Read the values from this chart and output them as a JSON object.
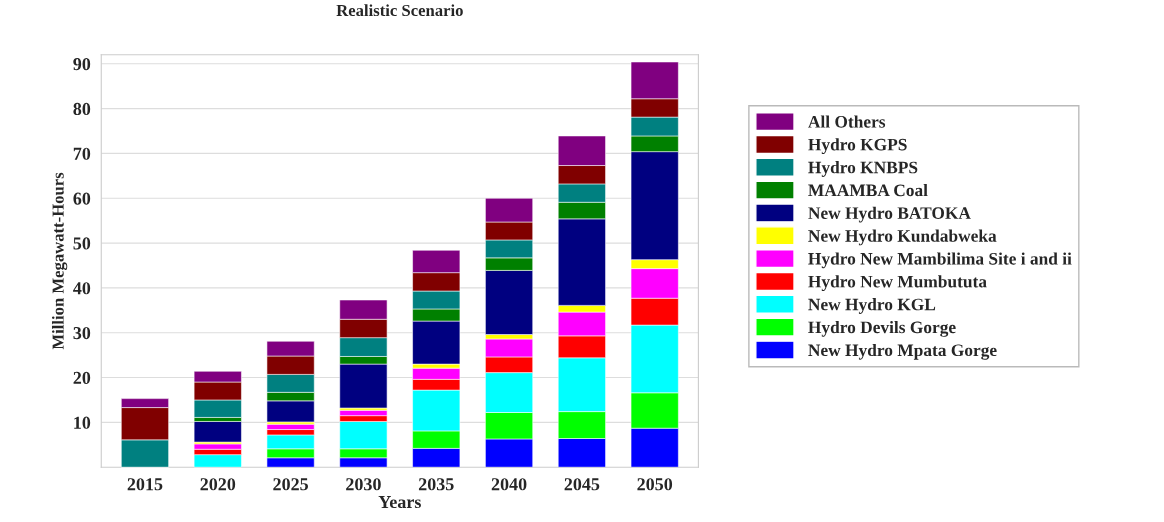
{
  "chart_data": {
    "type": "bar",
    "title": "Realistic Scenario",
    "xlabel": "Years",
    "ylabel": "Million Megawatt-Hours",
    "categories": [
      "2015",
      "2020",
      "2025",
      "2030",
      "2035",
      "2040",
      "2045",
      "2050"
    ],
    "stacked": true,
    "ylim": [
      0,
      92
    ],
    "yticks": [
      10,
      20,
      30,
      40,
      50,
      60,
      70,
      80,
      90
    ],
    "grid": "y",
    "legend": "right",
    "series": [
      {
        "name": "New Hydro Mpata Gorge",
        "color": "#0000ff",
        "values": [
          0,
          0,
          2.1,
          2.1,
          4.2,
          6.3,
          6.4,
          8.7
        ]
      },
      {
        "name": "Hydro Devils Gorge",
        "color": "#00ff00",
        "values": [
          0,
          0,
          2.0,
          2.0,
          3.9,
          5.9,
          6.0,
          7.9
        ]
      },
      {
        "name": "New Hydro KGL",
        "color": "#00ffff",
        "values": [
          0,
          2.8,
          3.1,
          6.1,
          9.1,
          8.9,
          12.0,
          15.1
        ]
      },
      {
        "name": "Hydro New Mumbututa",
        "color": "#ff0000",
        "values": [
          0,
          1.2,
          1.2,
          1.3,
          2.4,
          3.5,
          4.9,
          6.0
        ]
      },
      {
        "name": "Hydro New Mambilima Site i and ii",
        "color": "#ff00ff",
        "values": [
          0,
          1.2,
          1.2,
          1.2,
          2.5,
          4.0,
          5.3,
          6.6
        ]
      },
      {
        "name": "New Hydro Kundabweka",
        "color": "#ffff00",
        "values": [
          0,
          0.4,
          0.5,
          0.5,
          0.9,
          1.0,
          1.5,
          2.0
        ]
      },
      {
        "name": "New Hydro BATOKA",
        "color": "#000080",
        "values": [
          0,
          4.6,
          4.7,
          9.8,
          9.6,
          14.3,
          19.3,
          24.1
        ]
      },
      {
        "name": "MAAMBA Coal",
        "color": "#008000",
        "values": [
          0,
          0.9,
          1.9,
          1.7,
          2.7,
          2.8,
          3.7,
          3.5
        ]
      },
      {
        "name": "Hydro KNBPS",
        "color": "#008080",
        "values": [
          6.1,
          3.9,
          4.0,
          4.2,
          4.0,
          4.0,
          4.1,
          4.2
        ]
      },
      {
        "name": "Hydro KGPS",
        "color": "#800000",
        "values": [
          7.2,
          4.0,
          4.1,
          4.1,
          4.1,
          4.0,
          4.1,
          4.1
        ]
      },
      {
        "name": "All Others",
        "color": "#800080",
        "values": [
          2.0,
          2.4,
          3.3,
          4.3,
          5.0,
          5.3,
          6.6,
          8.2
        ]
      }
    ]
  }
}
